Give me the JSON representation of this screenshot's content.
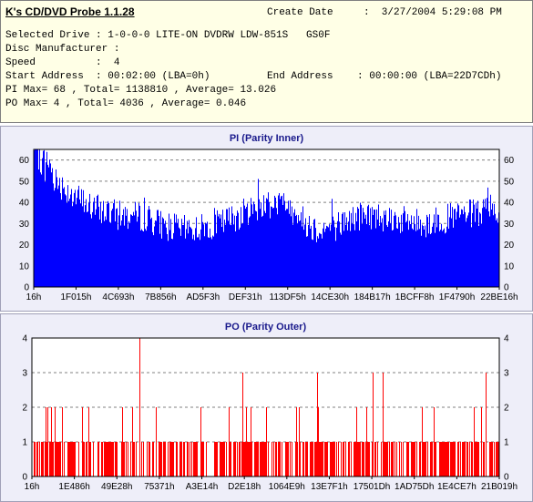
{
  "info": {
    "app_title": "K's CD/DVD Probe 1.1.28",
    "create_date_label": "Create Date",
    "create_date": ":  3/27/2004 5:29:08 PM",
    "selected_drive": "Selected Drive : 1-0-0-0 LITE-ON DVDRW LDW-851S   GS0F",
    "disc_manufacturer": "Disc Manufacturer :",
    "speed": "Speed          :  4",
    "start_address": "Start Address  : 00:02:00 (LBA=0h)",
    "end_address": "End Address    : 00:00:00 (LBA=22D7CDh)",
    "pi_summary": "PI Max= 68 , Total= 1138810 , Average= 13.026",
    "po_summary": "PO Max= 4 , Total= 4036 , Average= 0.046"
  },
  "colors": {
    "pi_bar": "#0000ff",
    "po_bar": "#ff0000",
    "panel_bg": "#eeeef9",
    "info_bg": "#ffffe6"
  },
  "chart_data": [
    {
      "type": "bar",
      "title": "PI (Parity Inner)",
      "xlabel": "",
      "ylabel": "",
      "ylim": [
        0,
        65
      ],
      "yticks": [
        "0",
        "10",
        "20",
        "30",
        "40",
        "50",
        "60"
      ],
      "xticks": [
        "16h",
        "1F015h",
        "4C693h",
        "7B856h",
        "AD5F3h",
        "DEF31h",
        "113DF5h",
        "14CE30h",
        "184B17h",
        "1BCFF8h",
        "1F4790h",
        "22BE16h"
      ],
      "grid": true,
      "max": 68,
      "total": 1138810,
      "average": 13.026,
      "profile": [
        [
          0,
          60
        ],
        [
          0.04,
          52
        ],
        [
          0.08,
          44
        ],
        [
          0.12,
          38
        ],
        [
          0.18,
          34
        ],
        [
          0.24,
          33
        ],
        [
          0.28,
          29
        ],
        [
          0.32,
          27
        ],
        [
          0.36,
          28
        ],
        [
          0.4,
          30
        ],
        [
          0.44,
          34
        ],
        [
          0.48,
          38
        ],
        [
          0.52,
          40
        ],
        [
          0.56,
          36
        ],
        [
          0.58,
          31
        ],
        [
          0.61,
          27
        ],
        [
          0.64,
          28
        ],
        [
          0.68,
          32
        ],
        [
          0.72,
          34
        ],
        [
          0.76,
          33
        ],
        [
          0.8,
          31
        ],
        [
          0.84,
          30
        ],
        [
          0.88,
          32
        ],
        [
          0.92,
          34
        ],
        [
          0.96,
          35
        ],
        [
          1,
          36
        ]
      ]
    },
    {
      "type": "bar",
      "title": "PO (Parity Outer)",
      "xlabel": "",
      "ylabel": "",
      "ylim": [
        0,
        4
      ],
      "yticks": [
        "0",
        "1",
        "2",
        "3",
        "4"
      ],
      "xticks": [
        "16h",
        "1E486h",
        "49E28h",
        "75371h",
        "A3E14h",
        "D2E18h",
        "1064E9h",
        "13E7F1h",
        "17501Dh",
        "1AD75Dh",
        "1E4CE7h",
        "21B019h"
      ],
      "grid": true,
      "max": 4,
      "total": 4036,
      "average": 0.046,
      "peaks": [
        [
          0.23,
          4
        ],
        [
          0.45,
          3
        ],
        [
          0.61,
          3
        ],
        [
          0.73,
          3
        ],
        [
          0.75,
          3
        ],
        [
          0.97,
          3
        ]
      ]
    }
  ]
}
